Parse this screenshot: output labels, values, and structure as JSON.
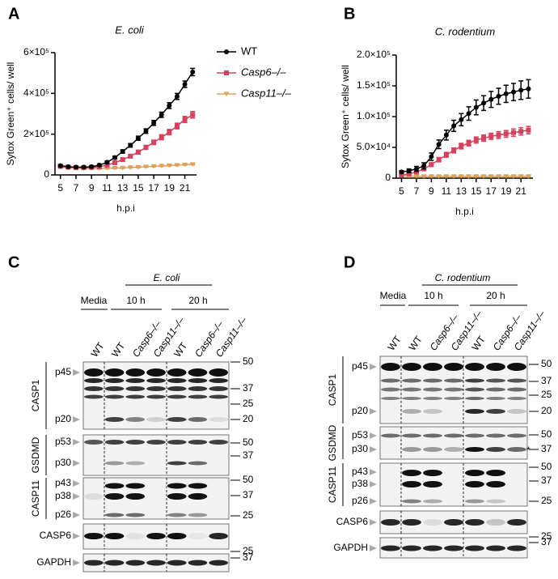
{
  "chart_data": [
    {
      "type": "line",
      "letter": "A",
      "title": "E. coli",
      "x_label": "h.p.i",
      "y_label": "Sytox Green⁺ cells/ well",
      "x": [
        5,
        6,
        7,
        8,
        9,
        10,
        11,
        12,
        13,
        14,
        15,
        16,
        17,
        18,
        19,
        20,
        21,
        22
      ],
      "xlim": [
        4.3,
        22.5
      ],
      "xticks": [
        5,
        7,
        9,
        11,
        13,
        15,
        17,
        19,
        21
      ],
      "ylim": [
        0,
        600000
      ],
      "yticks": [
        0,
        {
          "value": 200000,
          "label": "2×10⁵"
        },
        {
          "value": 400000,
          "label": "4×10⁵"
        },
        {
          "value": 600000,
          "label": "6×10⁵"
        }
      ],
      "series": [
        {
          "name": "WT",
          "color": "#000000",
          "marker": "circle",
          "values": [
            45000,
            40000,
            38000,
            38000,
            40000,
            48000,
            62000,
            85000,
            115000,
            145000,
            180000,
            215000,
            255000,
            295000,
            340000,
            385000,
            445000,
            505000
          ],
          "errors": [
            5000,
            4000,
            4000,
            4000,
            4000,
            5000,
            6000,
            7000,
            8000,
            9000,
            10000,
            11000,
            12000,
            13000,
            14000,
            15000,
            16000,
            18000
          ]
        },
        {
          "name": "Casp6–/–",
          "color": "#d6415e",
          "marker": "square",
          "values": [
            42000,
            38000,
            36000,
            36000,
            37000,
            40000,
            48000,
            60000,
            75000,
            92000,
            112000,
            135000,
            160000,
            185000,
            210000,
            240000,
            272000,
            295000
          ],
          "errors": [
            4000,
            3000,
            3000,
            3000,
            3000,
            4000,
            5000,
            6000,
            7000,
            8000,
            9000,
            10000,
            11000,
            12000,
            13000,
            14000,
            15000,
            16000
          ]
        },
        {
          "name": "Casp11–/–",
          "color": "#e0a15a",
          "marker": "triangle",
          "values": [
            38000,
            35000,
            33000,
            32000,
            32000,
            32000,
            33000,
            34000,
            35000,
            37000,
            38000,
            40000,
            42000,
            44000,
            46000,
            48000,
            50000,
            52000
          ],
          "errors": [
            3000,
            3000,
            3000,
            3000,
            3000,
            3000,
            3000,
            3000,
            3000,
            3000,
            3000,
            3000,
            3000,
            3000,
            3000,
            3000,
            3000,
            3000
          ]
        }
      ]
    },
    {
      "type": "line",
      "letter": "B",
      "title": "C. rodentium",
      "x_label": "h.p.i",
      "y_label": "Sytox Green⁺ cells/ well",
      "x": [
        5,
        6,
        7,
        8,
        9,
        10,
        11,
        12,
        13,
        14,
        15,
        16,
        17,
        18,
        19,
        20,
        21,
        22
      ],
      "xlim": [
        4.3,
        22.6
      ],
      "xticks": [
        5,
        7,
        9,
        11,
        13,
        15,
        17,
        19,
        21
      ],
      "ylim": [
        0,
        200000
      ],
      "yticks": [
        0,
        {
          "value": 50000,
          "label": "5.0×10⁴"
        },
        {
          "value": 100000,
          "label": "1.0×10⁵"
        },
        {
          "value": 150000,
          "label": "1.5×10⁵"
        },
        {
          "value": 200000,
          "label": "2.0×10⁵"
        }
      ],
      "series": [
        {
          "name": "WT",
          "color": "#000000",
          "marker": "circle",
          "values": [
            10000,
            12000,
            15000,
            20000,
            35000,
            55000,
            70000,
            85000,
            95000,
            105000,
            115000,
            122000,
            128000,
            133000,
            137000,
            140000,
            143000,
            145000
          ],
          "errors": [
            2000,
            3000,
            4000,
            5000,
            6000,
            7000,
            8000,
            9000,
            10000,
            11000,
            12000,
            12000,
            13000,
            13000,
            14000,
            14000,
            15000,
            15000
          ]
        },
        {
          "name": "Casp6–/–",
          "color": "#d6415e",
          "marker": "square",
          "values": [
            5000,
            7000,
            10000,
            15000,
            22000,
            30000,
            38000,
            45000,
            52000,
            57000,
            62000,
            65000,
            68000,
            70000,
            72000,
            74000,
            76000,
            78000
          ],
          "errors": [
            1000,
            1500,
            2000,
            2500,
            3000,
            3500,
            4000,
            4000,
            4500,
            4500,
            5000,
            5000,
            5000,
            5500,
            5500,
            6000,
            6000,
            6000
          ]
        },
        {
          "name": "Casp11–/–",
          "color": "#e0a15a",
          "marker": "triangle",
          "values": [
            4000,
            3500,
            3000,
            3000,
            3000,
            3000,
            3000,
            3000,
            3000,
            3000,
            3000,
            3000,
            3000,
            3000,
            3000,
            3000,
            3000,
            3000
          ],
          "errors": [
            1000,
            1000,
            1000,
            1000,
            1000,
            1000,
            1000,
            1000,
            1000,
            1000,
            1000,
            1000,
            1000,
            1000,
            1000,
            1000,
            1000,
            1000
          ]
        }
      ]
    }
  ],
  "blots": [
    {
      "letter": "C",
      "condition": "E. coli",
      "groups": [
        "Media",
        "10 h",
        "20 h"
      ],
      "lanes": [
        "WT",
        "WT",
        "Casp6–/–",
        "Casp11–/–",
        "WT",
        "Casp6–/–",
        "Casp11–/–"
      ],
      "strips": [
        {
          "protein": "CASP1",
          "bands": [
            "p45",
            "p20"
          ],
          "markers": [
            50,
            37,
            25,
            20
          ]
        },
        {
          "protein": "GSDMD",
          "bands": [
            "p53",
            "p30"
          ],
          "markers": [
            50,
            37
          ]
        },
        {
          "protein": "CASP11",
          "bands": [
            "p43",
            "p38",
            "p26"
          ],
          "markers": [
            50,
            37,
            25
          ]
        },
        {
          "protein": "CASP6",
          "bands": [],
          "markers": [
            25
          ]
        },
        {
          "protein": "GAPDH",
          "bands": [],
          "markers": [
            37
          ]
        }
      ]
    },
    {
      "letter": "D",
      "condition": "C. rodentium",
      "groups": [
        "Media",
        "10 h",
        "20 h"
      ],
      "lanes": [
        "WT",
        "WT",
        "Casp6–/–",
        "Casp11–/–",
        "WT",
        "Casp6–/–",
        "Casp11–/–"
      ],
      "strips": [
        {
          "protein": "CASP1",
          "bands": [
            "p45",
            "p20"
          ],
          "markers": [
            50,
            37,
            25,
            20
          ]
        },
        {
          "protein": "GSDMD",
          "bands": [
            "p53",
            "p30"
          ],
          "markers": [
            50,
            37
          ],
          "annotation": "*"
        },
        {
          "protein": "CASP11",
          "bands": [
            "p43",
            "p38",
            "p26"
          ],
          "markers": [
            50,
            37,
            25
          ]
        },
        {
          "protein": "CASP6",
          "bands": [],
          "markers": [
            25
          ]
        },
        {
          "protein": "GAPDH",
          "bands": [],
          "markers": [
            37
          ]
        }
      ]
    }
  ]
}
